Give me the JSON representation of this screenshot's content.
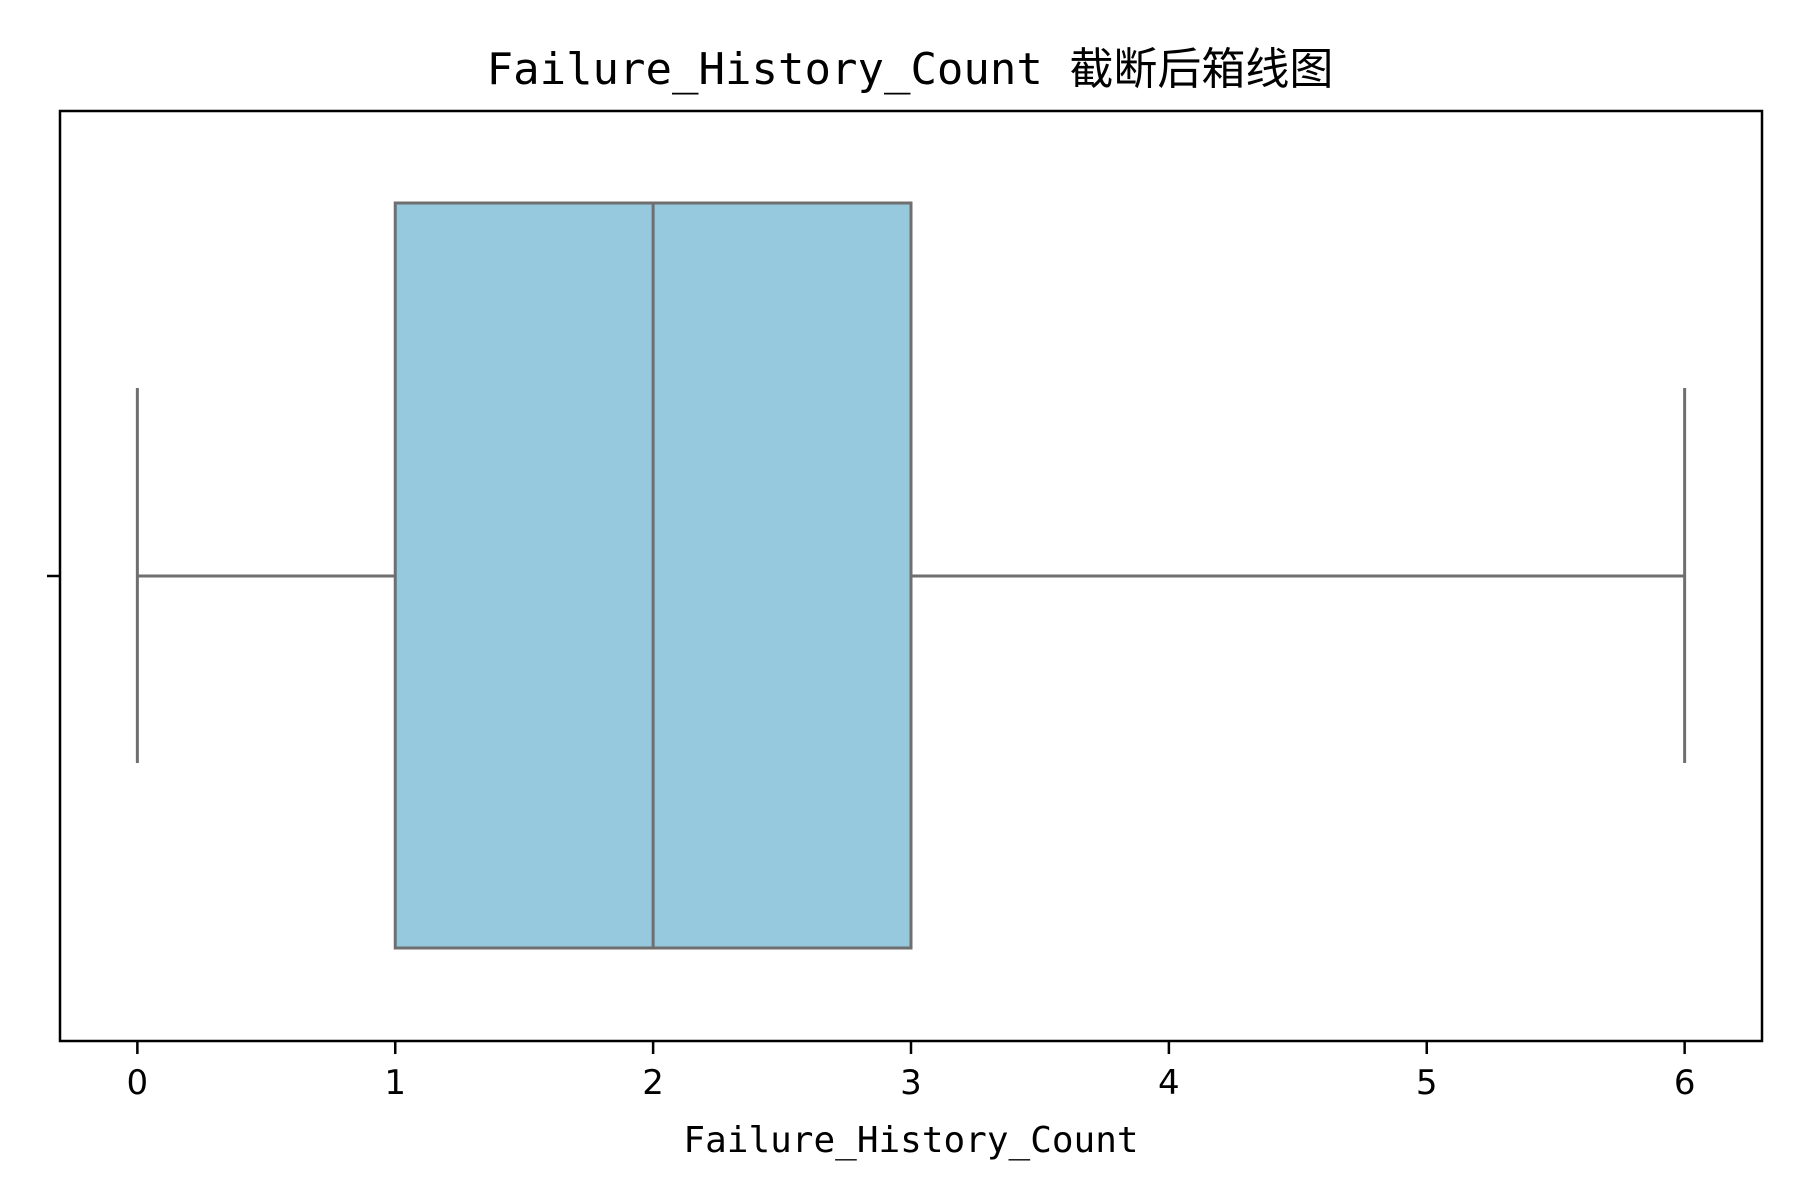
{
  "chart_data": {
    "type": "box",
    "title": "Failure_History_Count 截断后箱线图",
    "xlabel": "Failure_History_Count",
    "ylabel": "",
    "orientation": "horizontal",
    "xlim": [
      -0.3,
      6.3
    ],
    "xticks": [
      0,
      1,
      2,
      3,
      4,
      5,
      6
    ],
    "xtick_labels": [
      "0",
      "1",
      "2",
      "3",
      "4",
      "5",
      "6"
    ],
    "box": {
      "whisker_low": 0,
      "q1": 1,
      "median": 2,
      "q3": 3,
      "whisker_high": 6
    },
    "grid": false,
    "colors": {
      "box_fill": "#96c8de",
      "box_edge": "#6f6f6f",
      "axis": "#000000"
    }
  }
}
